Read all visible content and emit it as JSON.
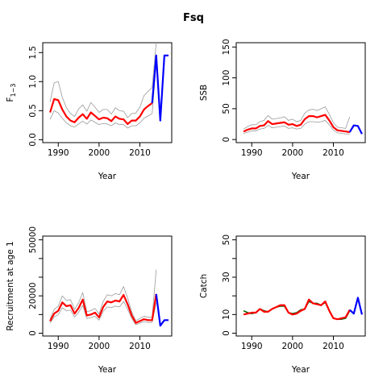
{
  "title": "Fsq",
  "colors": {
    "ci": "#9a9a9a",
    "estimate": "#ff0000",
    "forecast": "#0000ff",
    "observed": "#006400",
    "axis": "#000000"
  },
  "chart_data": [
    {
      "id": "f",
      "type": "line",
      "xlabel": "Year",
      "ylabel": "F",
      "ylabel_subscript": "1−3",
      "xlim": [
        1986.2,
        2017.8
      ],
      "ylim": [
        -0.05,
        1.67
      ],
      "xticks": [
        1990,
        2000,
        2010
      ],
      "yticks": [
        0.0,
        0.5,
        1.0,
        1.5
      ],
      "ytick_labels": [
        "0.0",
        "0.5",
        "1.0",
        "1.5"
      ],
      "x": [
        1988,
        1989,
        1990,
        1991,
        1992,
        1993,
        1994,
        1995,
        1996,
        1997,
        1998,
        1999,
        2000,
        2001,
        2002,
        2003,
        2004,
        2005,
        2006,
        2007,
        2008,
        2009,
        2010,
        2011,
        2012,
        2013
      ],
      "estimate": [
        0.47,
        0.7,
        0.68,
        0.52,
        0.4,
        0.33,
        0.3,
        0.38,
        0.44,
        0.36,
        0.47,
        0.41,
        0.35,
        0.38,
        0.37,
        0.32,
        0.4,
        0.36,
        0.35,
        0.27,
        0.33,
        0.33,
        0.4,
        0.52,
        0.58,
        0.63
      ],
      "upper": [
        0.65,
        0.98,
        1.0,
        0.73,
        0.55,
        0.45,
        0.4,
        0.53,
        0.6,
        0.49,
        0.64,
        0.56,
        0.47,
        0.52,
        0.52,
        0.44,
        0.55,
        0.5,
        0.49,
        0.38,
        0.45,
        0.46,
        0.56,
        0.76,
        0.83,
        0.9
      ],
      "lower": [
        0.35,
        0.5,
        0.46,
        0.37,
        0.29,
        0.24,
        0.22,
        0.27,
        0.32,
        0.27,
        0.34,
        0.3,
        0.26,
        0.28,
        0.27,
        0.24,
        0.29,
        0.26,
        0.26,
        0.2,
        0.24,
        0.24,
        0.29,
        0.37,
        0.41,
        0.45
      ],
      "ci_last": {
        "x": [
          2013,
          2014
        ],
        "upper": [
          0.9,
          1.67
        ],
        "lower": [
          0.45,
          1.3
        ]
      },
      "forecast_x": [
        2013,
        2014,
        2015,
        2016,
        2017
      ],
      "forecast": [
        0.63,
        1.45,
        0.33,
        1.45,
        1.45
      ]
    },
    {
      "id": "ssb",
      "type": "line",
      "xlabel": "Year",
      "ylabel": "SSB",
      "xlim": [
        1986.2,
        2017.8
      ],
      "ylim": [
        -5,
        157
      ],
      "xticks": [
        1990,
        2000,
        2010
      ],
      "yticks": [
        0,
        50,
        100,
        150
      ],
      "ytick_labels": [
        "0",
        "50",
        "100",
        "150"
      ],
      "x": [
        1988,
        1989,
        1990,
        1991,
        1992,
        1993,
        1994,
        1995,
        1996,
        1997,
        1998,
        1999,
        2000,
        2001,
        2002,
        2003,
        2004,
        2005,
        2006,
        2007,
        2008,
        2009,
        2010,
        2011,
        2012,
        2013,
        2014
      ],
      "estimate": [
        13,
        16,
        18,
        18,
        22,
        23,
        30,
        25,
        26,
        27,
        28,
        24,
        25,
        22,
        24,
        33,
        38,
        38,
        36,
        38,
        40,
        31,
        20,
        15,
        14,
        13,
        12
      ],
      "upper": [
        17,
        21,
        24,
        24,
        29,
        31,
        39,
        33,
        34,
        35,
        37,
        31,
        33,
        29,
        31,
        43,
        48,
        49,
        47,
        50,
        53,
        41,
        27,
        20,
        19,
        18,
        37
      ],
      "lower": [
        10,
        12,
        14,
        14,
        17,
        18,
        23,
        19,
        20,
        21,
        22,
        18,
        19,
        17,
        18,
        25,
        29,
        29,
        28,
        29,
        31,
        24,
        15,
        11,
        10,
        9,
        9
      ],
      "forecast_x": [
        2014,
        2015,
        2016,
        2017
      ],
      "forecast": [
        12,
        23,
        22,
        9
      ]
    },
    {
      "id": "rec",
      "type": "line",
      "xlabel": "Year",
      "ylabel": "Recruitment at age 1",
      "xlim": [
        1986.2,
        2017.8
      ],
      "ylim": [
        -1500,
        52000
      ],
      "xticks": [
        1990,
        2000,
        2010
      ],
      "yticks": [
        0,
        10000,
        20000,
        30000,
        40000,
        50000
      ],
      "ytick_labels": [
        "0",
        "",
        "20000",
        "",
        "",
        "50000"
      ],
      "x": [
        1988,
        1989,
        1990,
        1991,
        1992,
        1993,
        1994,
        1995,
        1996,
        1997,
        1998,
        1999,
        2000,
        2001,
        2002,
        2003,
        2004,
        2005,
        2006,
        2007,
        2008,
        2009,
        2010,
        2011,
        2012,
        2013,
        2014
      ],
      "estimate": [
        6500,
        10500,
        12000,
        16500,
        14500,
        15000,
        10500,
        13500,
        18000,
        9500,
        10000,
        11000,
        8500,
        14000,
        17000,
        16500,
        17500,
        17000,
        20500,
        15500,
        9500,
        5500,
        6500,
        7500,
        7000,
        7000,
        21000
      ],
      "upper": [
        7800,
        12700,
        14500,
        20000,
        17500,
        18000,
        12700,
        16300,
        21800,
        11500,
        12100,
        13300,
        10300,
        17000,
        20600,
        20000,
        21200,
        20600,
        25000,
        18800,
        11500,
        6700,
        7900,
        9100,
        8500,
        8500,
        34000
      ],
      "lower": [
        5400,
        8700,
        9900,
        13600,
        12000,
        12400,
        8700,
        11200,
        14900,
        7900,
        8300,
        9100,
        7000,
        11600,
        14100,
        13700,
        14500,
        14100,
        17000,
        12800,
        7900,
        4500,
        5400,
        6200,
        5800,
        5800,
        16500
      ],
      "forecast_x": [
        2014,
        2015,
        2016,
        2017
      ],
      "forecast": [
        21000,
        4000,
        7000,
        7000
      ]
    },
    {
      "id": "catch",
      "type": "line",
      "xlabel": "Year",
      "ylabel": "Catch",
      "xlim": [
        1986.2,
        2017.8
      ],
      "ylim": [
        -1.5,
        52
      ],
      "xticks": [
        1990,
        2000,
        2010
      ],
      "yticks": [
        0,
        10,
        20,
        30,
        40,
        50
      ],
      "ytick_labels": [
        "0",
        "10",
        "",
        "30",
        "",
        "50"
      ],
      "x": [
        1988,
        1989,
        1990,
        1991,
        1992,
        1993,
        1994,
        1995,
        1996,
        1997,
        1998,
        1999,
        2000,
        2001,
        2002,
        2003,
        2004,
        2005,
        2006,
        2007,
        2008,
        2009,
        2010,
        2011,
        2012,
        2013,
        2014
      ],
      "observed": [
        12,
        11,
        10.5,
        11,
        13,
        12,
        11.5,
        13,
        14,
        14.5,
        14.5,
        11,
        10.5,
        11,
        12.5,
        13,
        17,
        16,
        16,
        15,
        16.5,
        12,
        8,
        7.5,
        7.5,
        8,
        12
      ],
      "estimate": [
        10,
        10.5,
        11,
        11,
        13,
        11.5,
        11.5,
        13,
        14,
        15,
        15,
        11,
        10,
        10.5,
        12,
        13,
        18,
        16,
        15.5,
        15,
        17,
        12,
        8,
        7.5,
        8,
        8.5,
        12.5
      ],
      "forecast_x": [
        2014,
        2015,
        2016,
        2017
      ],
      "forecast": [
        12.5,
        10.5,
        19,
        10
      ]
    }
  ]
}
